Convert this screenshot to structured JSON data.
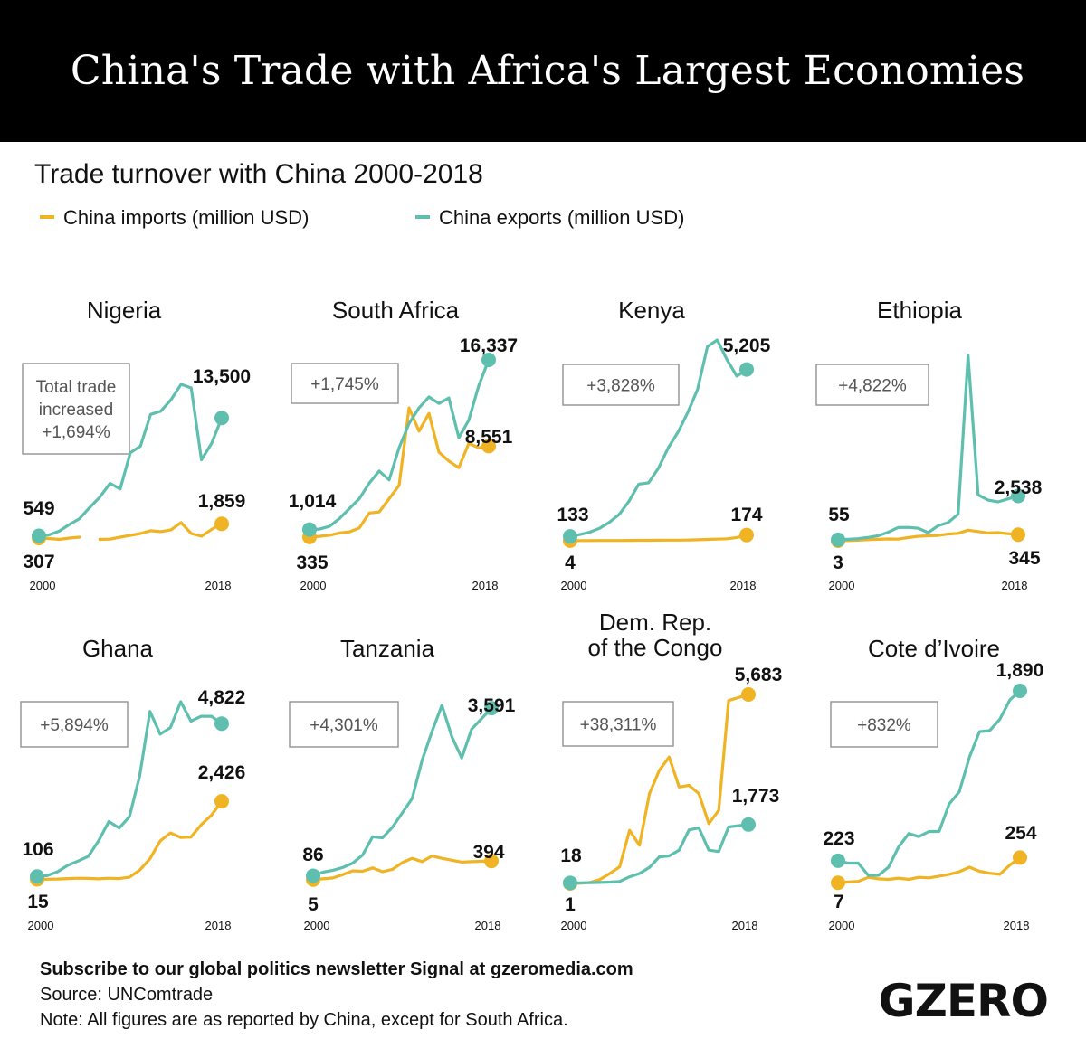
{
  "title": "China's Trade with Africa's Largest Economies",
  "subtitle": "Trade turnover with China 2000-2018",
  "legend": {
    "imports": "China imports (million USD)",
    "exports": "China exports (million USD)"
  },
  "colors": {
    "imports": "#f0b323",
    "exports": "#5fbfae",
    "box_border": "#999999"
  },
  "footer": {
    "subscribe": "Subscribe to our global politics newsletter Signal at gzeromedia.com",
    "source": "Source: UNComtrade",
    "note": "Note: All figures are as reported by China, except for South Africa."
  },
  "logo": "GZERO",
  "chart_data": [
    {
      "type": "line",
      "country": "Nigeria",
      "x_start_label": "2000",
      "x_end_label": "2018",
      "growth_label": "Total trade increased +1,694%",
      "exports": {
        "start_label": "549",
        "end_label": "13,500",
        "values": [
          549,
          650,
          1050,
          1790,
          2430,
          3660,
          4800,
          6300,
          5700,
          9670,
          10400,
          13890,
          14250,
          15500,
          17200,
          16800,
          8900,
          10700,
          13500
        ]
      },
      "imports": {
        "start_label": "307",
        "end_label": "1,859",
        "values": [
          307,
          250,
          150,
          300,
          400,
          null,
          150,
          180,
          400,
          600,
          800,
          1100,
          1000,
          1200,
          2000,
          800,
          500,
          1250,
          1859
        ]
      }
    },
    {
      "type": "line",
      "country": "South Africa",
      "x_start_label": "2000",
      "x_end_label": "2018",
      "growth_label": "+1,745%",
      "exports": {
        "start_label": "1,014",
        "end_label": "16,337",
        "values": [
          1014,
          1050,
          1300,
          2000,
          2900,
          3800,
          5200,
          6300,
          5500,
          8400,
          10600,
          12000,
          13000,
          12400,
          12900,
          9300,
          10900,
          14000,
          16337
        ]
      },
      "imports": {
        "start_label": "335",
        "end_label": "8,551",
        "values": [
          335,
          400,
          500,
          700,
          800,
          1150,
          2500,
          2600,
          3800,
          5000,
          12000,
          9900,
          11500,
          8000,
          7200,
          6600,
          8800,
          8400,
          8551
        ]
      }
    },
    {
      "type": "line",
      "country": "Kenya",
      "x_start_label": "2000",
      "x_end_label": "2018",
      "growth_label": "+3,828%",
      "exports": {
        "start_label": "133",
        "end_label": "5,205",
        "values": [
          133,
          190,
          260,
          380,
          560,
          800,
          1200,
          1720,
          1760,
          2200,
          2820,
          3300,
          3900,
          4600,
          5900,
          6100,
          5500,
          5000,
          5205
        ]
      },
      "imports": {
        "start_label": "4",
        "end_label": "174",
        "values": [
          4,
          5,
          6,
          7,
          8,
          9,
          11,
          13,
          14,
          16,
          18,
          20,
          22,
          30,
          40,
          50,
          60,
          100,
          174
        ]
      }
    },
    {
      "type": "line",
      "country": "Ethiopia",
      "x_start_label": "2000",
      "x_end_label": "2018",
      "growth_label": "+4,822%",
      "exports": {
        "start_label": "55",
        "end_label": "2,538",
        "values": [
          55,
          80,
          120,
          190,
          280,
          480,
          750,
          760,
          710,
          460,
          850,
          1030,
          1500,
          10500,
          2600,
          2300,
          2200,
          null,
          2538
        ]
      },
      "imports": {
        "start_label": "3",
        "end_label": "345",
        "values": [
          3,
          10,
          30,
          60,
          80,
          100,
          90,
          180,
          250,
          280,
          300,
          380,
          420,
          600,
          520,
          440,
          460,
          400,
          345
        ]
      }
    },
    {
      "type": "line",
      "country": "Ghana",
      "x_start_label": "2000",
      "x_end_label": "2018",
      "growth_label": "+5,894%",
      "exports": {
        "start_label": "106",
        "end_label": "4,822",
        "values": [
          106,
          130,
          250,
          450,
          580,
          730,
          1210,
          1800,
          1600,
          1950,
          3200,
          5200,
          4500,
          4700,
          5500,
          4900,
          5050,
          5050,
          4822
        ]
      },
      "imports": {
        "start_label": "15",
        "end_label": "2,426",
        "values": [
          15,
          20,
          25,
          40,
          50,
          45,
          30,
          50,
          40,
          80,
          300,
          650,
          1200,
          1450,
          1310,
          1320,
          1700,
          2000,
          2426
        ]
      }
    },
    {
      "type": "line",
      "country": "Tanzania",
      "x_start_label": "2000",
      "x_end_label": "2018",
      "growth_label": "+4,301%",
      "exports": {
        "start_label": "86",
        "end_label": "3,591",
        "values": [
          86,
          160,
          200,
          260,
          350,
          520,
          900,
          880,
          1100,
          1400,
          1700,
          2500,
          3100,
          3650,
          3000,
          2550,
          3150,
          null,
          3591
        ]
      },
      "imports": {
        "start_label": "5",
        "end_label": "394",
        "values": [
          5,
          20,
          40,
          110,
          190,
          180,
          250,
          170,
          220,
          360,
          450,
          380,
          500,
          450,
          410,
          370,
          380,
          null,
          394
        ]
      }
    },
    {
      "type": "line",
      "country": "Dem. Rep. of the Congo",
      "x_start_label": "2000",
      "x_end_label": "2018",
      "growth_label": "+38,311%",
      "exports": {
        "start_label": "18",
        "end_label": "1,773",
        "values": [
          18,
          20,
          25,
          30,
          40,
          60,
          200,
          300,
          480,
          800,
          830,
          1000,
          1610,
          1670,
          1000,
          960,
          1700,
          null,
          1773
        ]
      },
      "imports": {
        "start_label": "1",
        "end_label": "5,683",
        "values": [
          1,
          5,
          30,
          120,
          300,
          500,
          1600,
          1150,
          2700,
          3400,
          3800,
          2900,
          2950,
          2700,
          1800,
          2200,
          5500,
          null,
          5683
        ]
      }
    },
    {
      "type": "line",
      "country": "Cote d’Ivoire",
      "x_start_label": "2000",
      "x_end_label": "2018",
      "growth_label": "+832%",
      "exports": {
        "start_label": "223",
        "end_label": "1,890",
        "values": [
          223,
          200,
          200,
          80,
          80,
          160,
          360,
          490,
          460,
          510,
          510,
          780,
          900,
          1240,
          1490,
          1500,
          1610,
          1800,
          1890
        ]
      },
      "imports": {
        "start_label": "7",
        "end_label": "254",
        "values": [
          7,
          14,
          20,
          60,
          45,
          40,
          52,
          40,
          60,
          55,
          72,
          90,
          115,
          160,
          120,
          100,
          90,
          180,
          254
        ]
      }
    }
  ]
}
